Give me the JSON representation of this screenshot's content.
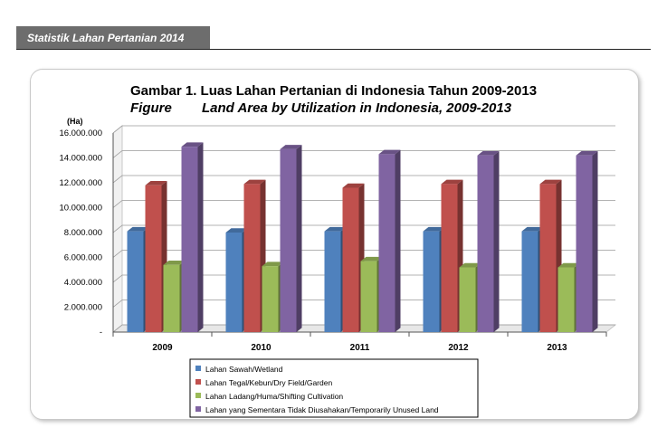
{
  "header": {
    "label": "Statistik Lahan Pertanian 2014"
  },
  "chart_data": {
    "type": "bar",
    "title": "Gambar 1. Luas Lahan Pertanian di Indonesia Tahun 2009-2013",
    "subtitle_prefix": "Figure",
    "subtitle": "Land Area by Utilization in Indonesia, 2009-2013",
    "ylabel": "(Ha)",
    "categories": [
      "2009",
      "2010",
      "2011",
      "2012",
      "2013"
    ],
    "ylim": [
      0,
      16000000
    ],
    "yticks": [
      {
        "value": 0,
        "label": "-"
      },
      {
        "value": 2000000,
        "label": "2.000.000"
      },
      {
        "value": 4000000,
        "label": "4.000.000"
      },
      {
        "value": 6000000,
        "label": "6.000.000"
      },
      {
        "value": 8000000,
        "label": "8.000.000"
      },
      {
        "value": 10000000,
        "label": "10.000.000"
      },
      {
        "value": 12000000,
        "label": "12.000.000"
      },
      {
        "value": 14000000,
        "label": "14.000.000"
      },
      {
        "value": 16000000,
        "label": "16.000.000"
      }
    ],
    "grid": true,
    "legend_position": "bottom",
    "series": [
      {
        "name": "Lahan Sawah/Wetland",
        "color": "#4f81bd",
        "values": [
          8100000,
          8000000,
          8100000,
          8100000,
          8100000
        ]
      },
      {
        "name": "Lahan Tegal/Kebun/Dry  Field/Garden",
        "color": "#c0504d",
        "values": [
          11800000,
          11900000,
          11600000,
          11900000,
          11900000
        ]
      },
      {
        "name": "Lahan Ladang/Huma/Shifting Cultivation",
        "color": "#9bbb59",
        "values": [
          5400000,
          5300000,
          5700000,
          5200000,
          5200000
        ]
      },
      {
        "name": "Lahan yang Sementara Tidak Diusahakan/Temporarily  Unused Land",
        "color": "#8064a2",
        "values": [
          14900000,
          14700000,
          14300000,
          14200000,
          14200000
        ]
      }
    ]
  }
}
